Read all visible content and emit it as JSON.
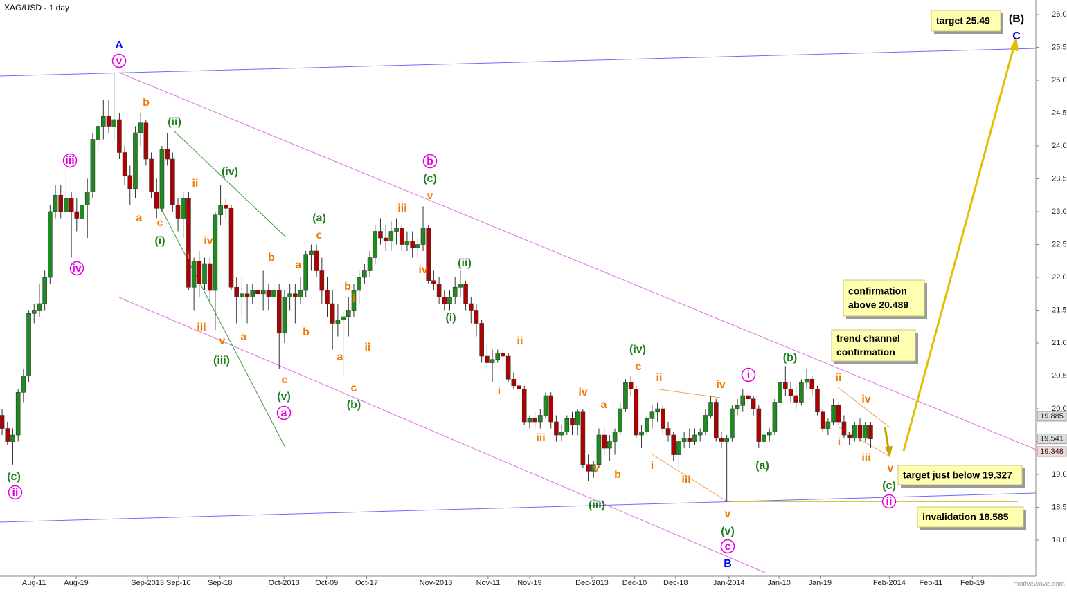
{
  "chart_data": {
    "type": "candlestick",
    "title": "XAG/USD - 1 day",
    "up_color": "#1f8a1f",
    "down_color": "#b00000",
    "ylim": [
      17.453,
      26.221
    ],
    "yticks": [
      {
        "value": 18,
        "label": "18.000"
      },
      {
        "value": 18.5,
        "label": "18.500"
      },
      {
        "value": 19,
        "label": "19.000"
      },
      {
        "value": 19.5,
        "label": "19.500"
      },
      {
        "value": 20,
        "label": "20.000"
      },
      {
        "value": 20.5,
        "label": "20.500"
      },
      {
        "value": 21,
        "label": "21.000"
      },
      {
        "value": 21.5,
        "label": "21.500"
      },
      {
        "value": 22,
        "label": "22.000"
      },
      {
        "value": 22.5,
        "label": "22.500"
      },
      {
        "value": 23,
        "label": "23.000"
      },
      {
        "value": 23.5,
        "label": "23.500"
      },
      {
        "value": 24,
        "label": "24.000"
      },
      {
        "value": 24.5,
        "label": "24.500"
      },
      {
        "value": 25,
        "label": "25.000"
      },
      {
        "value": 25.5,
        "label": "25.500"
      },
      {
        "value": 26,
        "label": "26.000"
      }
    ],
    "xlim": [
      -0.4,
      194
    ],
    "xticks": [
      {
        "value": 6,
        "label": "Aug-11"
      },
      {
        "value": 13.9,
        "label": "Aug-19"
      },
      {
        "value": 27.3,
        "label": "Sep-2013"
      },
      {
        "value": 33.1,
        "label": "Sep-10"
      },
      {
        "value": 40.9,
        "label": "Sep-18"
      },
      {
        "value": 52.9,
        "label": "Oct-2013"
      },
      {
        "value": 60.9,
        "label": "Oct-09"
      },
      {
        "value": 68.4,
        "label": "Oct-17"
      },
      {
        "value": 81.4,
        "label": "Nov-2013"
      },
      {
        "value": 91.2,
        "label": "Nov-11"
      },
      {
        "value": 99,
        "label": "Nov-19"
      },
      {
        "value": 110.7,
        "label": "Dec-2013"
      },
      {
        "value": 118.7,
        "label": "Dec-10"
      },
      {
        "value": 126.4,
        "label": "Dec-18"
      },
      {
        "value": 136.4,
        "label": "Jan-2014"
      },
      {
        "value": 145.8,
        "label": "Jan-10"
      },
      {
        "value": 153.5,
        "label": "Jan-19"
      },
      {
        "value": 166.5,
        "label": "Feb-2014"
      },
      {
        "value": 174.3,
        "label": "Feb-11"
      },
      {
        "value": 182.1,
        "label": "Feb-19"
      }
    ],
    "ohlc": [
      [
        19.9,
        20.0,
        19.6,
        19.7
      ],
      [
        19.7,
        19.8,
        19.45,
        19.5
      ],
      [
        19.5,
        19.7,
        19.15,
        19.6
      ],
      [
        19.6,
        20.3,
        19.5,
        20.25
      ],
      [
        20.25,
        20.6,
        20.1,
        20.5
      ],
      [
        20.5,
        21.5,
        20.4,
        21.45
      ],
      [
        21.45,
        21.6,
        21.3,
        21.5
      ],
      [
        21.5,
        21.9,
        21.4,
        21.6
      ],
      [
        21.6,
        22.1,
        21.5,
        22.0
      ],
      [
        22.0,
        23.1,
        21.9,
        23.0
      ],
      [
        23.0,
        23.4,
        22.9,
        23.25
      ],
      [
        23.25,
        23.4,
        22.9,
        23.0
      ],
      [
        23.0,
        23.65,
        22.9,
        23.2
      ],
      [
        23.2,
        23.3,
        22.3,
        23.0
      ],
      [
        23.0,
        23.2,
        22.7,
        22.9
      ],
      [
        22.9,
        23.3,
        22.8,
        23.1
      ],
      [
        23.1,
        23.5,
        22.6,
        23.3
      ],
      [
        23.3,
        24.2,
        23.2,
        24.1
      ],
      [
        24.1,
        24.4,
        23.9,
        24.3
      ],
      [
        24.3,
        24.7,
        24.1,
        24.45
      ],
      [
        24.45,
        24.7,
        24.2,
        24.3
      ],
      [
        24.3,
        25.12,
        24.1,
        24.4
      ],
      [
        24.4,
        24.5,
        23.8,
        23.9
      ],
      [
        23.9,
        24.0,
        23.4,
        23.55
      ],
      [
        23.55,
        23.7,
        23.1,
        23.35
      ],
      [
        23.35,
        24.3,
        23.2,
        24.2
      ],
      [
        24.2,
        24.5,
        24.0,
        24.35
      ],
      [
        24.35,
        24.4,
        23.7,
        23.8
      ],
      [
        23.8,
        23.9,
        23.2,
        23.3
      ],
      [
        23.3,
        23.5,
        22.9,
        23.05
      ],
      [
        23.05,
        24.0,
        23.0,
        23.95
      ],
      [
        23.95,
        24.2,
        23.7,
        23.8
      ],
      [
        23.8,
        23.9,
        23.0,
        23.1
      ],
      [
        23.1,
        23.2,
        22.7,
        22.9
      ],
      [
        22.9,
        23.3,
        22.6,
        23.2
      ],
      [
        23.2,
        23.3,
        21.8,
        21.85
      ],
      [
        21.85,
        22.3,
        21.5,
        22.25
      ],
      [
        22.25,
        22.4,
        21.7,
        21.9
      ],
      [
        21.9,
        22.3,
        21.8,
        22.2
      ],
      [
        22.2,
        22.3,
        21.6,
        21.8
      ],
      [
        21.8,
        23.0,
        21.2,
        22.95
      ],
      [
        22.95,
        23.4,
        22.8,
        23.1
      ],
      [
        23.1,
        23.2,
        22.9,
        23.05
      ],
      [
        23.05,
        23.1,
        21.8,
        21.85
      ],
      [
        21.85,
        22.0,
        21.3,
        21.7
      ],
      [
        21.7,
        22.0,
        21.4,
        21.75
      ],
      [
        21.75,
        21.9,
        21.3,
        21.7
      ],
      [
        21.7,
        21.9,
        21.6,
        21.8
      ],
      [
        21.8,
        22.0,
        21.5,
        21.75
      ],
      [
        21.75,
        22.1,
        21.5,
        21.8
      ],
      [
        21.8,
        21.9,
        21.5,
        21.7
      ],
      [
        21.7,
        22.0,
        21.6,
        21.8
      ],
      [
        21.8,
        21.9,
        20.6,
        21.15
      ],
      [
        21.15,
        21.8,
        21.0,
        21.7
      ],
      [
        21.7,
        21.9,
        21.5,
        21.75
      ],
      [
        21.75,
        21.9,
        21.3,
        21.7
      ],
      [
        21.7,
        22.0,
        21.6,
        21.8
      ],
      [
        21.8,
        22.4,
        21.7,
        22.35
      ],
      [
        22.35,
        22.5,
        22.1,
        22.4
      ],
      [
        22.4,
        22.5,
        22.0,
        22.1
      ],
      [
        22.1,
        22.3,
        21.6,
        21.8
      ],
      [
        21.8,
        22.0,
        21.4,
        21.6
      ],
      [
        21.6,
        21.8,
        20.9,
        21.3
      ],
      [
        21.3,
        21.6,
        21.1,
        21.35
      ],
      [
        21.35,
        21.5,
        20.5,
        21.4
      ],
      [
        21.4,
        21.7,
        21.1,
        21.5
      ],
      [
        21.5,
        21.9,
        21.4,
        21.8
      ],
      [
        21.8,
        22.1,
        21.6,
        22.0
      ],
      [
        22.0,
        22.2,
        21.9,
        22.1
      ],
      [
        22.1,
        22.4,
        22.0,
        22.3
      ],
      [
        22.3,
        22.8,
        22.2,
        22.7
      ],
      [
        22.7,
        22.9,
        22.5,
        22.6
      ],
      [
        22.6,
        22.8,
        22.4,
        22.55
      ],
      [
        22.55,
        22.85,
        22.4,
        22.7
      ],
      [
        22.7,
        22.9,
        22.5,
        22.75
      ],
      [
        22.75,
        22.8,
        22.4,
        22.5
      ],
      [
        22.5,
        22.7,
        22.4,
        22.55
      ],
      [
        22.55,
        22.7,
        22.3,
        22.45
      ],
      [
        22.45,
        22.6,
        22.3,
        22.5
      ],
      [
        22.5,
        23.08,
        22.4,
        22.75
      ],
      [
        22.75,
        22.8,
        21.9,
        21.95
      ],
      [
        21.95,
        22.1,
        21.8,
        21.9
      ],
      [
        21.9,
        22.0,
        21.6,
        21.7
      ],
      [
        21.7,
        21.8,
        21.5,
        21.6
      ],
      [
        21.6,
        21.8,
        21.5,
        21.7
      ],
      [
        21.7,
        22.0,
        21.6,
        21.85
      ],
      [
        21.85,
        22.1,
        21.7,
        21.9
      ],
      [
        21.9,
        21.95,
        21.5,
        21.6
      ],
      [
        21.6,
        21.7,
        21.3,
        21.5
      ],
      [
        21.5,
        21.6,
        21.1,
        21.3
      ],
      [
        21.3,
        21.35,
        20.7,
        20.8
      ],
      [
        20.8,
        21.0,
        20.6,
        20.7
      ],
      [
        20.7,
        20.9,
        20.4,
        20.75
      ],
      [
        20.75,
        20.9,
        20.7,
        20.85
      ],
      [
        20.85,
        20.9,
        20.7,
        20.8
      ],
      [
        20.8,
        20.85,
        20.4,
        20.45
      ],
      [
        20.45,
        20.55,
        20.3,
        20.35
      ],
      [
        20.35,
        20.5,
        20.2,
        20.3
      ],
      [
        20.3,
        20.35,
        19.75,
        19.8
      ],
      [
        19.8,
        19.9,
        19.7,
        19.85
      ],
      [
        19.85,
        19.95,
        19.7,
        19.8
      ],
      [
        19.8,
        20.0,
        19.7,
        19.9
      ],
      [
        19.9,
        20.25,
        19.85,
        20.2
      ],
      [
        20.2,
        20.25,
        19.7,
        19.8
      ],
      [
        19.8,
        19.9,
        19.5,
        19.6
      ],
      [
        19.6,
        19.75,
        19.5,
        19.65
      ],
      [
        19.65,
        19.9,
        19.6,
        19.85
      ],
      [
        19.85,
        19.95,
        19.6,
        19.75
      ],
      [
        19.75,
        20.0,
        19.6,
        19.95
      ],
      [
        19.95,
        20.0,
        19.1,
        19.15
      ],
      [
        19.15,
        19.3,
        18.9,
        19.05
      ],
      [
        19.05,
        19.2,
        18.95,
        19.15
      ],
      [
        19.15,
        19.7,
        19.1,
        19.6
      ],
      [
        19.6,
        19.7,
        19.3,
        19.4
      ],
      [
        19.4,
        19.6,
        19.2,
        19.5
      ],
      [
        19.5,
        19.7,
        19.3,
        19.65
      ],
      [
        19.65,
        20.1,
        19.6,
        20.0
      ],
      [
        20.0,
        20.45,
        19.95,
        20.4
      ],
      [
        20.4,
        20.5,
        20.2,
        20.3
      ],
      [
        20.3,
        20.35,
        19.55,
        19.6
      ],
      [
        19.6,
        19.75,
        19.4,
        19.65
      ],
      [
        19.65,
        19.9,
        19.6,
        19.85
      ],
      [
        19.85,
        20.05,
        19.7,
        19.95
      ],
      [
        19.95,
        20.1,
        19.8,
        20.0
      ],
      [
        20.0,
        20.05,
        19.6,
        19.7
      ],
      [
        19.7,
        19.8,
        19.5,
        19.6
      ],
      [
        19.6,
        19.65,
        19.2,
        19.3
      ],
      [
        19.3,
        19.55,
        19.1,
        19.5
      ],
      [
        19.5,
        19.65,
        19.4,
        19.55
      ],
      [
        19.55,
        19.7,
        19.4,
        19.5
      ],
      [
        19.5,
        19.7,
        19.45,
        19.6
      ],
      [
        19.6,
        19.7,
        19.5,
        19.65
      ],
      [
        19.65,
        20.0,
        19.6,
        19.9
      ],
      [
        19.9,
        20.2,
        19.85,
        20.1
      ],
      [
        20.1,
        20.15,
        19.5,
        19.55
      ],
      [
        19.55,
        19.65,
        19.4,
        19.5
      ],
      [
        19.5,
        19.6,
        18.585,
        19.55
      ],
      [
        19.55,
        20.05,
        19.5,
        20.0
      ],
      [
        20.0,
        20.15,
        19.9,
        20.05
      ],
      [
        20.05,
        20.3,
        19.95,
        20.2
      ],
      [
        20.2,
        20.3,
        20.0,
        20.15
      ],
      [
        20.15,
        20.2,
        19.9,
        20.0
      ],
      [
        20.0,
        20.05,
        19.4,
        19.5
      ],
      [
        19.5,
        19.65,
        19.4,
        19.6
      ],
      [
        19.6,
        19.7,
        19.5,
        19.65
      ],
      [
        19.65,
        20.15,
        19.6,
        20.1
      ],
      [
        20.1,
        20.45,
        20.0,
        20.4
      ],
      [
        20.4,
        20.65,
        20.2,
        20.3
      ],
      [
        20.3,
        20.4,
        20.1,
        20.2
      ],
      [
        20.2,
        20.35,
        20.0,
        20.1
      ],
      [
        20.1,
        20.45,
        20.05,
        20.4
      ],
      [
        20.4,
        20.6,
        20.3,
        20.45
      ],
      [
        20.45,
        20.5,
        20.2,
        20.3
      ],
      [
        20.3,
        20.35,
        19.9,
        19.95
      ],
      [
        19.95,
        20.0,
        19.65,
        19.7
      ],
      [
        19.7,
        19.85,
        19.6,
        19.8
      ],
      [
        19.8,
        20.15,
        19.75,
        20.05
      ],
      [
        20.05,
        20.1,
        19.75,
        19.8
      ],
      [
        19.8,
        19.9,
        19.55,
        19.6
      ],
      [
        19.6,
        19.65,
        19.45,
        19.55
      ],
      [
        19.55,
        19.8,
        19.5,
        19.75
      ],
      [
        19.75,
        19.85,
        19.5,
        19.55
      ],
      [
        19.55,
        19.8,
        19.5,
        19.75
      ],
      [
        19.75,
        19.8,
        19.4,
        19.541
      ]
    ],
    "price_tags": [
      19.885,
      19.541,
      19.348
    ],
    "annotations": [
      {
        "text": "A",
        "color": "#0000ee"
      },
      {
        "text": "v",
        "color": "#e000e0",
        "circled": true
      },
      {
        "text": "iii",
        "color": "#e000e0",
        "circled": true
      },
      {
        "text": "iv",
        "color": "#e000e0",
        "circled": true
      },
      {
        "text": "ii",
        "color": "#e000e0",
        "circled": true
      },
      {
        "text": "b",
        "color": "#e000e0",
        "circled": true
      },
      {
        "text": "a",
        "color": "#e000e0",
        "circled": true
      },
      {
        "text": "c",
        "color": "#e000e0",
        "circled": true
      },
      {
        "text": "i",
        "color": "#e000e0",
        "circled": true
      },
      {
        "text": "ii",
        "color": "#e000e0",
        "circled": true
      },
      {
        "text": "B",
        "color": "#0000ee"
      },
      {
        "text": "C",
        "color": "#0000ee"
      },
      {
        "text": "(B)",
        "color": "#000000"
      },
      {
        "text": "(c)",
        "color": "#1e7d1e"
      },
      {
        "text": "(ii)",
        "color": "#1e7d1e"
      },
      {
        "text": "(i)",
        "color": "#1e7d1e"
      },
      {
        "text": "(iv)",
        "color": "#1e7d1e"
      },
      {
        "text": "(iii)",
        "color": "#1e7d1e"
      },
      {
        "text": "(v)",
        "color": "#1e7d1e"
      },
      {
        "text": "(a)",
        "color": "#1e7d1e"
      },
      {
        "text": "(b)",
        "color": "#1e7d1e"
      },
      {
        "text": "(c)",
        "color": "#1e7d1e"
      },
      {
        "text": "(ii)",
        "color": "#1e7d1e"
      },
      {
        "text": "(i)",
        "color": "#1e7d1e"
      },
      {
        "text": "(iv)",
        "color": "#1e7d1e"
      },
      {
        "text": "(iii)",
        "color": "#1e7d1e"
      },
      {
        "text": "(v)",
        "color": "#1e7d1e"
      },
      {
        "text": "(a)",
        "color": "#1e7d1e"
      },
      {
        "text": "(b)",
        "color": "#1e7d1e"
      },
      {
        "text": "(c)",
        "color": "#1e7d1e"
      },
      {
        "text": "b",
        "color": "#f07800"
      },
      {
        "text": "a",
        "color": "#f07800"
      },
      {
        "text": "c",
        "color": "#f07800"
      },
      {
        "text": "ii",
        "color": "#f07800"
      },
      {
        "text": "i",
        "color": "#f07800"
      },
      {
        "text": "iv",
        "color": "#f07800"
      },
      {
        "text": "iii",
        "color": "#f07800"
      },
      {
        "text": "v",
        "color": "#f07800"
      },
      {
        "text": "b",
        "color": "#f07800"
      },
      {
        "text": "a",
        "color": "#f07800"
      },
      {
        "text": "a",
        "color": "#f07800"
      },
      {
        "text": "c",
        "color": "#f07800"
      },
      {
        "text": "b",
        "color": "#f07800"
      },
      {
        "text": "c",
        "color": "#f07800"
      },
      {
        "text": "b",
        "color": "#f07800"
      },
      {
        "text": "i",
        "color": "#f07800"
      },
      {
        "text": "a",
        "color": "#f07800"
      },
      {
        "text": "ii",
        "color": "#f07800"
      },
      {
        "text": "c",
        "color": "#f07800"
      },
      {
        "text": "iii",
        "color": "#f07800"
      },
      {
        "text": "v",
        "color": "#f07800"
      },
      {
        "text": "iv",
        "color": "#f07800"
      },
      {
        "text": "ii",
        "color": "#f07800"
      },
      {
        "text": "i",
        "color": "#f07800"
      },
      {
        "text": "iii",
        "color": "#f07800"
      },
      {
        "text": "iv",
        "color": "#f07800"
      },
      {
        "text": "a",
        "color": "#f07800"
      },
      {
        "text": "v",
        "color": "#f07800"
      },
      {
        "text": "b",
        "color": "#f07800"
      },
      {
        "text": "c",
        "color": "#f07800"
      },
      {
        "text": "ii",
        "color": "#f07800"
      },
      {
        "text": "i",
        "color": "#f07800"
      },
      {
        "text": "iii",
        "color": "#f07800"
      },
      {
        "text": "iv",
        "color": "#f07800"
      },
      {
        "text": "v",
        "color": "#f07800"
      },
      {
        "text": "ii",
        "color": "#f07800"
      },
      {
        "text": "iv",
        "color": "#f07800"
      },
      {
        "text": "i",
        "color": "#f07800"
      },
      {
        "text": "iii",
        "color": "#f07800"
      },
      {
        "text": "v",
        "color": "#f07800"
      }
    ],
    "notes": [
      [
        "target 25.49"
      ],
      [
        "confirmation",
        "above 20.489"
      ],
      [
        "trend channel",
        "confirmation"
      ],
      [
        "target just below 19.327"
      ],
      [
        "invalidation 18.585"
      ]
    ],
    "watermark": "motivewave.com"
  }
}
